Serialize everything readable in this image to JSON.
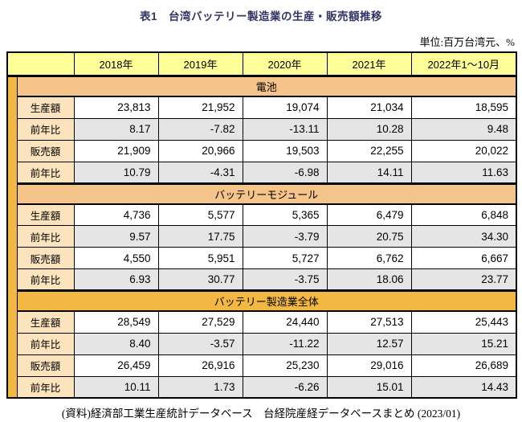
{
  "title": "表1　台湾バッテリー製造業の生産・販売額推移",
  "unit_note": "単位:百万台湾元、%",
  "source_note": "(資料)経済部工業生産統計データベース　台経院産経データベースまとめ (2023/01)",
  "colors": {
    "title_navy": "#333366",
    "header_yellow": "#FFFF99",
    "band_peach": "#F4C48B",
    "band_gold": "#F2B843",
    "label_peach": "#FAE3BD",
    "row_gray": "#E5E5E5",
    "border_black": "#000000"
  },
  "table": {
    "year_headers": [
      "2018年",
      "2019年",
      "2020年",
      "2021年",
      "2022年1〜10月"
    ],
    "sections": [
      {
        "name": "電池",
        "band_style": "peach",
        "rows": [
          {
            "label": "生産額",
            "shade": "white",
            "values": [
              "23,813",
              "21,952",
              "19,074",
              "21,034",
              "18,595"
            ]
          },
          {
            "label": "前年比",
            "shade": "gray",
            "values": [
              "8.17",
              "-7.82",
              "-13.11",
              "10.28",
              "9.48"
            ]
          },
          {
            "label": "販売額",
            "shade": "white",
            "values": [
              "21,909",
              "20,966",
              "19,503",
              "22,255",
              "20,022"
            ]
          },
          {
            "label": "前年比",
            "shade": "gray",
            "values": [
              "10.79",
              "-4.31",
              "-6.98",
              "14.11",
              "11.63"
            ]
          }
        ]
      },
      {
        "name": "バッテリーモジュール",
        "band_style": "peach",
        "rows": [
          {
            "label": "生産額",
            "shade": "white",
            "values": [
              "4,736",
              "5,577",
              "5,365",
              "6,479",
              "6,848"
            ]
          },
          {
            "label": "前年比",
            "shade": "gray",
            "values": [
              "9.57",
              "17.75",
              "-3.79",
              "20.75",
              "34.30"
            ]
          },
          {
            "label": "販売額",
            "shade": "white",
            "values": [
              "4,550",
              "5,951",
              "5,727",
              "6,762",
              "6,667"
            ]
          },
          {
            "label": "前年比",
            "shade": "gray",
            "values": [
              "6.93",
              "30.77",
              "-3.75",
              "18.06",
              "23.77"
            ]
          }
        ]
      },
      {
        "name": "バッテリー製造業全体",
        "band_style": "gold",
        "rows": [
          {
            "label": "生産額",
            "shade": "white",
            "values": [
              "28,549",
              "27,529",
              "24,440",
              "27,513",
              "25,443"
            ]
          },
          {
            "label": "前年比",
            "shade": "gray",
            "values": [
              "8.40",
              "-3.57",
              "-11.22",
              "12.57",
              "15.21"
            ]
          },
          {
            "label": "販売額",
            "shade": "white",
            "values": [
              "26,459",
              "26,916",
              "25,230",
              "29,016",
              "26,689"
            ]
          },
          {
            "label": "前年比",
            "shade": "gray",
            "values": [
              "10.11",
              "1.73",
              "-6.26",
              "15.01",
              "14.43"
            ]
          }
        ]
      }
    ]
  }
}
